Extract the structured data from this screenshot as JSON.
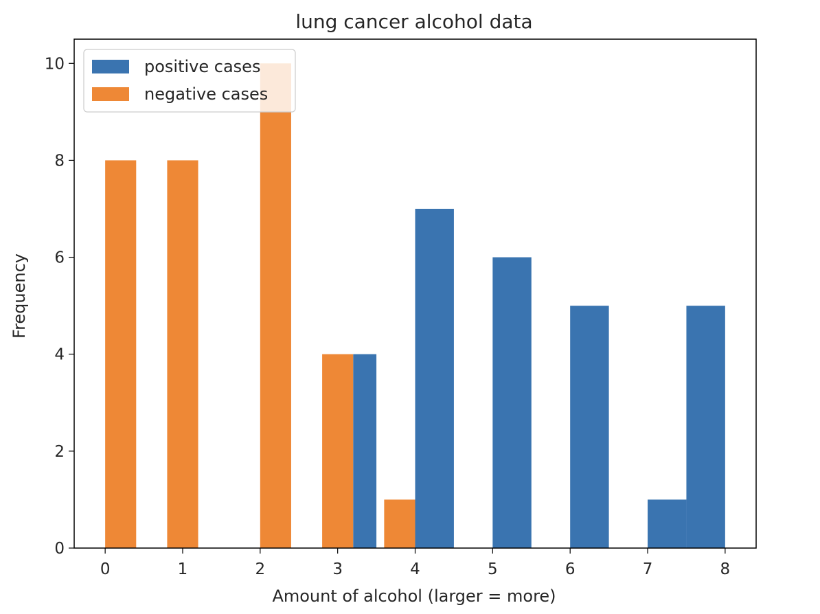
{
  "chart_data": {
    "type": "bar",
    "title": "lung cancer alcohol data",
    "xlabel": "Amount of alcohol (larger = more)",
    "ylabel": "Frequency",
    "xlim": [
      -0.4,
      8.4
    ],
    "ylim": [
      0,
      10.5
    ],
    "xticks": [
      "0",
      "1",
      "2",
      "3",
      "4",
      "5",
      "6",
      "7",
      "8"
    ],
    "yticks": [
      "0",
      "2",
      "4",
      "6",
      "8",
      "10"
    ],
    "legend_position": "top-left",
    "grid": false,
    "series": [
      {
        "name": "positive cases",
        "color": "#3a74b0",
        "bars": [
          {
            "x0": 3.2,
            "x1": 3.5,
            "value": 4
          },
          {
            "x0": 4.0,
            "x1": 4.5,
            "value": 7
          },
          {
            "x0": 5.0,
            "x1": 5.5,
            "value": 6
          },
          {
            "x0": 6.0,
            "x1": 6.5,
            "value": 5
          },
          {
            "x0": 7.0,
            "x1": 7.5,
            "value": 1
          },
          {
            "x0": 7.5,
            "x1": 8.0,
            "value": 5
          }
        ]
      },
      {
        "name": "negative cases",
        "color": "#ee8836",
        "bars": [
          {
            "x0": 0.0,
            "x1": 0.4,
            "value": 8
          },
          {
            "x0": 0.8,
            "x1": 1.2,
            "value": 8
          },
          {
            "x0": 2.0,
            "x1": 2.4,
            "value": 10
          },
          {
            "x0": 2.8,
            "x1": 3.2,
            "value": 4
          },
          {
            "x0": 3.6,
            "x1": 4.0,
            "value": 1
          }
        ]
      }
    ]
  }
}
